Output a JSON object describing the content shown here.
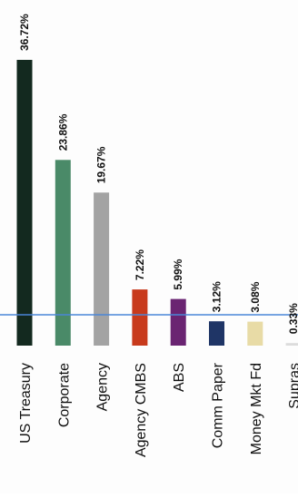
{
  "chart_data": {
    "type": "bar",
    "categories": [
      "US Treasury",
      "Corporate",
      "Agency",
      "Agency CMBS",
      "ABS",
      "Comm Paper",
      "Money Mkt Fd",
      "Supras"
    ],
    "values": [
      36.72,
      23.86,
      19.67,
      7.22,
      5.99,
      3.12,
      3.08,
      0.33
    ],
    "value_labels": [
      "36.72%",
      "23.86%",
      "19.67%",
      "7.22%",
      "5.99%",
      "3.12%",
      "3.08%",
      "0.33%"
    ],
    "colors": [
      "#13291f",
      "#4a8a68",
      "#a3a3a3",
      "#c83a1c",
      "#6a2472",
      "#1f3566",
      "#e8dba6",
      "#dcdcdc"
    ],
    "reference_line_color": "#4a86d8",
    "ylim": [
      0,
      38
    ],
    "grid": false,
    "legend": "none",
    "orientation": "rotated 90 degrees"
  }
}
